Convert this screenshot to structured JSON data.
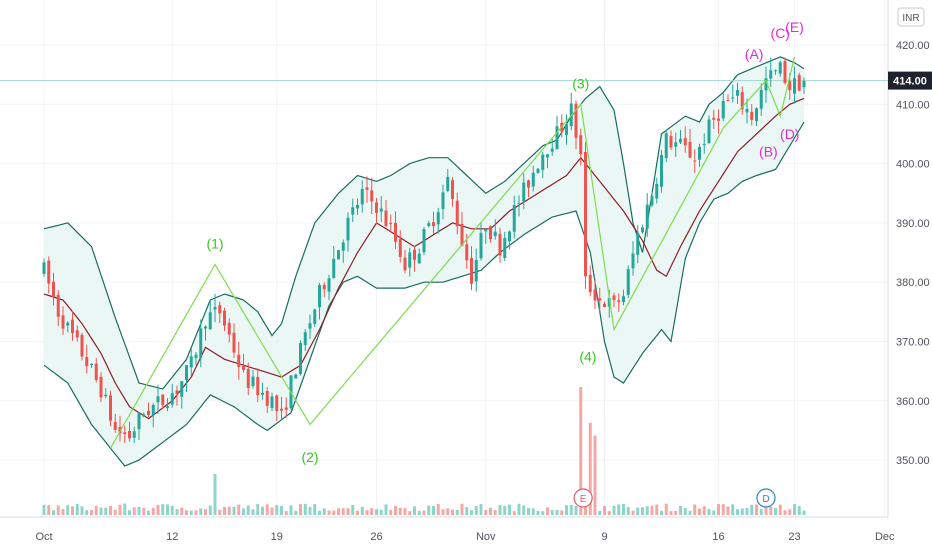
{
  "currency": "INR",
  "last_price_label": "414.00",
  "colors": {
    "up": "#26a69a",
    "down": "#ef5350",
    "band": "#1a6b5f",
    "band_fill": "#e8f6f3",
    "basis": "#8c1d26",
    "wave_line": "#7ddc4f",
    "wave_green_text": "#35c91d",
    "wave_magenta_text": "#e02bd6",
    "price_tag_bg": "#1e222d",
    "price_line": "#9fd8d0",
    "volume_up": "#8fd4c9",
    "volume_down": "#f4a8a6",
    "earnings": "#e05a6a",
    "dividend": "#2f7fd0"
  },
  "chart_data": {
    "type": "candlestick",
    "title": "",
    "x_ticks": [
      "Oct",
      "12",
      "19",
      "26",
      "Nov",
      "9",
      "16",
      "23",
      "Dec"
    ],
    "y_ticks": [
      350,
      360,
      370,
      380,
      390,
      400,
      410,
      420
    ],
    "ylim": [
      342,
      426
    ],
    "last_price": 414.0,
    "bollinger": {
      "upper_knots": [
        [
          0,
          389
        ],
        [
          5,
          390
        ],
        [
          10,
          386
        ],
        [
          15,
          374
        ],
        [
          20,
          363
        ],
        [
          25,
          362
        ],
        [
          30,
          367
        ],
        [
          35,
          377
        ],
        [
          38,
          378
        ],
        [
          42,
          377
        ],
        [
          45,
          375
        ],
        [
          48,
          371
        ],
        [
          50,
          373
        ],
        [
          53,
          381
        ],
        [
          57,
          390
        ],
        [
          62,
          395
        ],
        [
          66,
          398
        ],
        [
          70,
          397
        ],
        [
          73,
          398
        ],
        [
          77,
          400
        ],
        [
          81,
          401
        ],
        [
          85,
          401
        ],
        [
          89,
          398
        ],
        [
          93,
          395
        ],
        [
          97,
          397
        ],
        [
          101,
          400
        ],
        [
          105,
          403
        ],
        [
          108,
          404
        ],
        [
          111,
          408
        ],
        [
          114,
          411
        ],
        [
          117,
          413
        ],
        [
          120,
          409
        ],
        [
          122,
          400
        ],
        [
          124,
          390
        ],
        [
          126,
          385
        ],
        [
          130,
          405
        ],
        [
          135,
          408
        ],
        [
          138,
          407
        ],
        [
          140,
          410
        ],
        [
          143,
          412
        ],
        [
          146,
          415
        ],
        [
          149,
          416
        ],
        [
          152,
          417
        ],
        [
          155,
          418
        ],
        [
          158,
          417
        ],
        [
          160,
          416
        ]
      ],
      "lower_knots": [
        [
          0,
          366
        ],
        [
          5,
          363
        ],
        [
          10,
          356
        ],
        [
          14,
          352
        ],
        [
          17,
          349
        ],
        [
          20,
          350
        ],
        [
          25,
          353
        ],
        [
          30,
          356
        ],
        [
          35,
          361
        ],
        [
          40,
          359
        ],
        [
          45,
          356
        ],
        [
          47,
          355
        ],
        [
          52,
          358
        ],
        [
          56,
          367
        ],
        [
          60,
          376
        ],
        [
          63,
          380
        ],
        [
          66,
          381
        ],
        [
          70,
          379
        ],
        [
          73,
          379
        ],
        [
          76,
          379
        ],
        [
          80,
          380
        ],
        [
          84,
          380
        ],
        [
          88,
          381
        ],
        [
          92,
          382
        ],
        [
          96,
          385
        ],
        [
          101,
          388
        ],
        [
          107,
          391
        ],
        [
          112,
          392
        ],
        [
          115,
          385
        ],
        [
          118,
          370
        ],
        [
          120,
          364
        ],
        [
          122,
          363
        ],
        [
          126,
          368
        ],
        [
          130,
          372
        ],
        [
          132,
          370
        ],
        [
          135,
          384
        ],
        [
          138,
          390
        ],
        [
          141,
          394
        ],
        [
          144,
          395
        ],
        [
          147,
          397
        ],
        [
          150,
          398
        ],
        [
          154,
          399
        ],
        [
          157,
          403
        ],
        [
          160,
          407
        ]
      ],
      "basis_knots": [
        [
          0,
          378
        ],
        [
          4,
          377
        ],
        [
          8,
          373
        ],
        [
          12,
          368
        ],
        [
          15,
          363
        ],
        [
          18,
          359
        ],
        [
          22,
          357
        ],
        [
          27,
          360
        ],
        [
          31,
          364
        ],
        [
          34,
          369
        ],
        [
          38,
          367
        ],
        [
          42,
          366
        ],
        [
          46,
          365
        ],
        [
          50,
          364
        ],
        [
          54,
          366
        ],
        [
          58,
          372
        ],
        [
          62,
          379
        ],
        [
          66,
          385
        ],
        [
          70,
          390
        ],
        [
          74,
          388
        ],
        [
          78,
          386
        ],
        [
          82,
          388
        ],
        [
          86,
          390
        ],
        [
          90,
          389
        ],
        [
          94,
          389
        ],
        [
          98,
          392
        ],
        [
          102,
          394
        ],
        [
          106,
          396
        ],
        [
          110,
          398
        ],
        [
          113,
          401
        ],
        [
          115,
          399
        ],
        [
          118,
          396
        ],
        [
          122,
          392
        ],
        [
          126,
          387
        ],
        [
          129,
          382
        ],
        [
          131,
          381
        ],
        [
          134,
          386
        ],
        [
          138,
          392
        ],
        [
          142,
          397
        ],
        [
          146,
          402
        ],
        [
          150,
          405
        ],
        [
          154,
          408
        ],
        [
          157,
          410
        ],
        [
          160,
          411
        ]
      ]
    },
    "price_path_knots": [
      [
        0,
        382
      ],
      [
        3,
        375
      ],
      [
        8,
        368
      ],
      [
        12,
        362
      ],
      [
        15,
        355
      ],
      [
        18,
        354
      ],
      [
        21,
        358
      ],
      [
        25,
        360
      ],
      [
        28,
        362
      ],
      [
        31,
        366
      ],
      [
        34,
        374
      ],
      [
        37,
        375
      ],
      [
        39,
        371
      ],
      [
        42,
        364
      ],
      [
        45,
        362
      ],
      [
        48,
        360
      ],
      [
        50,
        357
      ],
      [
        52,
        363
      ],
      [
        55,
        371
      ],
      [
        58,
        378
      ],
      [
        61,
        384
      ],
      [
        64,
        390
      ],
      [
        67,
        395
      ],
      [
        70,
        393
      ],
      [
        73,
        389
      ],
      [
        76,
        383
      ],
      [
        79,
        386
      ],
      [
        82,
        391
      ],
      [
        85,
        397
      ],
      [
        88,
        387
      ],
      [
        90,
        381
      ],
      [
        93,
        390
      ],
      [
        96,
        386
      ],
      [
        99,
        392
      ],
      [
        102,
        397
      ],
      [
        105,
        402
      ],
      [
        108,
        405
      ],
      [
        111,
        409
      ],
      [
        113,
        401
      ],
      [
        114,
        380
      ],
      [
        117,
        377
      ],
      [
        120,
        376
      ],
      [
        122,
        378
      ],
      [
        125,
        388
      ],
      [
        128,
        395
      ],
      [
        131,
        404
      ],
      [
        134,
        403
      ],
      [
        137,
        401
      ],
      [
        140,
        406
      ],
      [
        143,
        410
      ],
      [
        146,
        411
      ],
      [
        149,
        408
      ],
      [
        152,
        414
      ],
      [
        155,
        416
      ],
      [
        157,
        413
      ],
      [
        160,
        414
      ]
    ],
    "wave_lines": [
      [
        [
          14,
          352
        ],
        [
          36,
          383
        ],
        [
          56,
          356
        ],
        [
          113,
          410
        ],
        [
          120,
          372
        ],
        [
          143,
          406
        ],
        [
          152,
          414
        ],
        [
          155,
          408
        ],
        [
          158,
          418
        ]
      ]
    ],
    "wave_labels": [
      {
        "text": "(1)",
        "x": 36,
        "y": 386.5,
        "color": "green"
      },
      {
        "text": "(2)",
        "x": 56,
        "y": 350.5,
        "color": "green"
      },
      {
        "text": "(3)",
        "x": 113,
        "y": 413.5,
        "color": "green"
      },
      {
        "text": "(4)",
        "x": 114.5,
        "y": 367.5,
        "color": "green"
      },
      {
        "text": "(A)",
        "x": 149.5,
        "y": 418.5,
        "color": "magenta"
      },
      {
        "text": "(B)",
        "x": 152.5,
        "y": 402,
        "color": "magenta"
      },
      {
        "text": "(C)",
        "x": 155,
        "y": 422,
        "color": "magenta"
      },
      {
        "text": "(D)",
        "x": 157,
        "y": 405,
        "color": "magenta"
      },
      {
        "text": "(E)",
        "x": 158,
        "y": 423,
        "color": "magenta"
      }
    ],
    "volume": {
      "spikes": [
        {
          "x": 36,
          "h": 0.32
        },
        {
          "x": 113,
          "h": 1.0
        },
        {
          "x": 114.5,
          "h": 0.72
        },
        {
          "x": 115.5,
          "h": 0.62
        }
      ],
      "badges": [
        {
          "x": 113.5,
          "letter": "E",
          "type": "earnings"
        },
        {
          "x": 152,
          "letter": "D",
          "type": "dividend"
        }
      ]
    }
  }
}
